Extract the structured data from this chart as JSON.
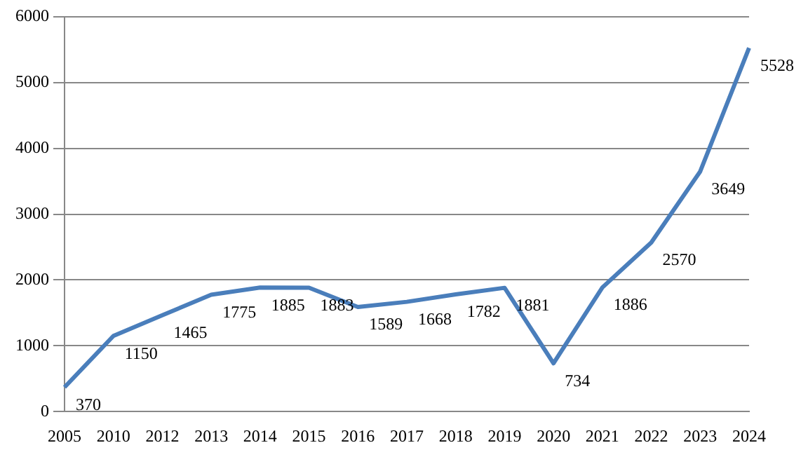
{
  "chart_data": {
    "type": "line",
    "categories": [
      "2005",
      "2010",
      "2012",
      "2013",
      "2014",
      "2015",
      "2016",
      "2017",
      "2018",
      "2019",
      "2020",
      "2021",
      "2022",
      "2023",
      "2024"
    ],
    "series": [
      {
        "color": "#4a7ebb",
        "values": [
          370,
          1150,
          1465,
          1775,
          1885,
          1883,
          1589,
          1668,
          1782,
          1881,
          734,
          1886,
          2570,
          3649,
          5528
        ]
      }
    ],
    "ylim": [
      0,
      6000
    ],
    "yticks": [
      0,
      1000,
      2000,
      3000,
      4000,
      5000,
      6000
    ],
    "grid": "y",
    "legend": false,
    "marker": "none",
    "line_style": "solid",
    "data_labels": true
  }
}
